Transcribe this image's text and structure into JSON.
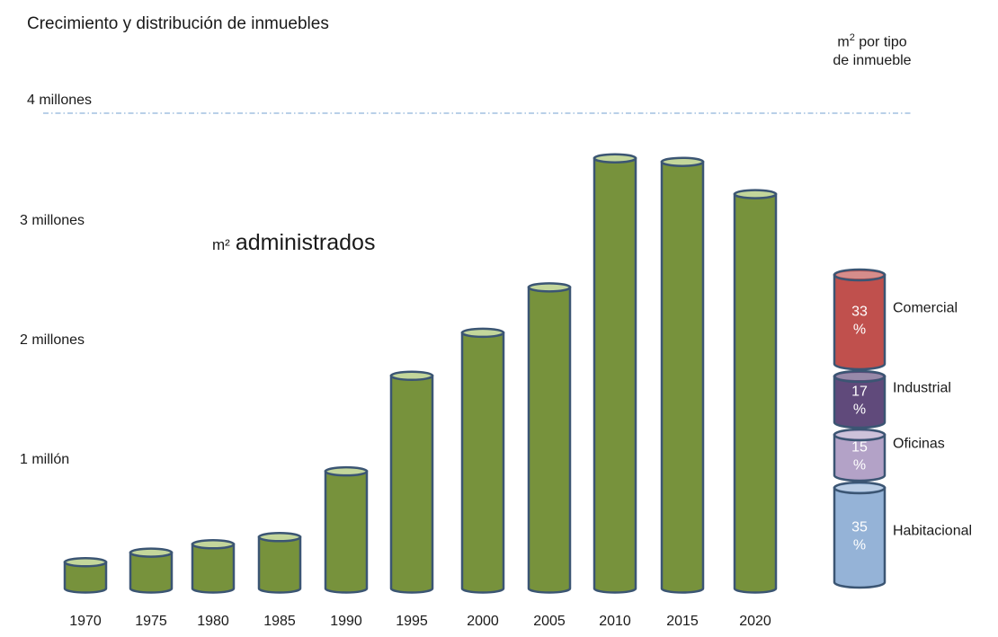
{
  "title": "Crecimiento y distribución de inmuebles",
  "annotation": {
    "unit": "m²",
    "text": "administrados"
  },
  "distribution_title": {
    "base": "m",
    "exp": "2",
    "rest": " por tipo",
    "line2": "de inmueble"
  },
  "colors": {
    "bar_fill": "#77923c",
    "bar_top": "#c3d69b",
    "outline": "#3b5573",
    "refline": "#8fb3d9"
  },
  "chart_data": [
    {
      "type": "bar",
      "title": "Crecimiento y distribución de inmuebles",
      "ylabel": "",
      "categories": [
        "1970",
        "1975",
        "1980",
        "1985",
        "1990",
        "1995",
        "2000",
        "2005",
        "2010",
        "2015",
        "2020"
      ],
      "values": [
        0.22,
        0.3,
        0.37,
        0.43,
        0.98,
        1.78,
        2.14,
        2.52,
        3.6,
        3.57,
        3.3
      ],
      "ylim": [
        0,
        4
      ],
      "y_tick_labels": [
        {
          "value": 1,
          "label": "1 millón"
        },
        {
          "value": 2,
          "label": "2 millones"
        },
        {
          "value": 3,
          "label": "3 millones"
        },
        {
          "value": 4,
          "label": "4 millones"
        }
      ],
      "reference_line": {
        "value": 4,
        "style": "dash-dot"
      },
      "grid": false
    },
    {
      "type": "stacked-bar",
      "title": "m² por tipo de inmueble",
      "segments": [
        {
          "name": "Habitacional",
          "value": 35,
          "label_top": "35",
          "label_bottom": "%",
          "color": "#95b3d7"
        },
        {
          "name": "Oficinas",
          "value": 15,
          "label_top": "15",
          "label_bottom": "%",
          "color": "#b3a2c7"
        },
        {
          "name": "Industrial",
          "value": 17,
          "label_top": "17",
          "label_bottom": "%",
          "color": "#604a7b"
        },
        {
          "name": "Comercial",
          "value": 33,
          "label_top": "33",
          "label_bottom": "%",
          "color": "#c0504d"
        }
      ]
    }
  ]
}
